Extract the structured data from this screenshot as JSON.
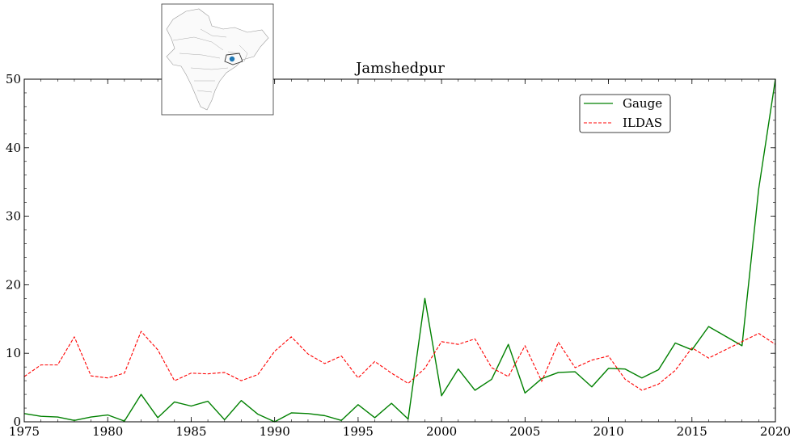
{
  "chart_data": {
    "type": "line",
    "title": "Jamshedpur",
    "xlabel": "",
    "ylabel": "",
    "xlim": [
      1975,
      2020
    ],
    "ylim": [
      0,
      50
    ],
    "xticks": [
      1975,
      1980,
      1985,
      1990,
      1995,
      2000,
      2005,
      2010,
      2015,
      2020
    ],
    "yticks": [
      0,
      10,
      20,
      30,
      40,
      50
    ],
    "grid": false,
    "legend_position": "top-right",
    "x": [
      1975,
      1976,
      1977,
      1978,
      1979,
      1980,
      1981,
      1982,
      1983,
      1984,
      1985,
      1986,
      1987,
      1988,
      1989,
      1990,
      1991,
      1992,
      1993,
      1994,
      1995,
      1996,
      1997,
      1998,
      1999,
      2000,
      2001,
      2002,
      2003,
      2004,
      2005,
      2006,
      2007,
      2008,
      2009,
      2010,
      2011,
      2012,
      2013,
      2014,
      2015,
      2016,
      2017,
      2018,
      2019,
      2020
    ],
    "series": [
      {
        "name": "Gauge",
        "color": "#008000",
        "linestyle": "solid",
        "values": [
          1.2,
          0.8,
          0.7,
          0.2,
          0.7,
          1.0,
          0.1,
          4.0,
          0.6,
          2.9,
          2.3,
          3.0,
          0.3,
          3.1,
          1.1,
          0.0,
          1.3,
          1.2,
          0.9,
          0.2,
          2.5,
          0.6,
          2.7,
          0.4,
          18.0,
          3.8,
          7.7,
          4.6,
          6.2,
          11.3,
          4.2,
          6.3,
          7.2,
          7.3,
          5.1,
          7.8,
          7.7,
          6.4,
          7.6,
          11.5,
          10.5,
          13.9,
          12.5,
          11.1,
          34.0,
          50.0
        ]
      },
      {
        "name": "ILDAS",
        "color": "#ff0000",
        "linestyle": "dashed",
        "values": [
          6.6,
          8.3,
          8.3,
          12.4,
          6.7,
          6.4,
          7.1,
          13.2,
          10.5,
          6.0,
          7.1,
          7.0,
          7.2,
          6.0,
          6.9,
          10.3,
          12.4,
          9.9,
          8.5,
          9.6,
          6.4,
          8.8,
          7.1,
          5.6,
          7.8,
          11.7,
          11.3,
          12.1,
          7.9,
          6.6,
          11.1,
          5.9,
          11.6,
          7.9,
          9.0,
          9.6,
          6.2,
          4.6,
          5.5,
          7.5,
          10.8,
          9.3,
          10.5,
          11.7,
          12.9,
          11.3
        ]
      }
    ]
  },
  "inset_map": {
    "marker_color": "#1f77b4",
    "icon": "india-locator-map-icon"
  }
}
